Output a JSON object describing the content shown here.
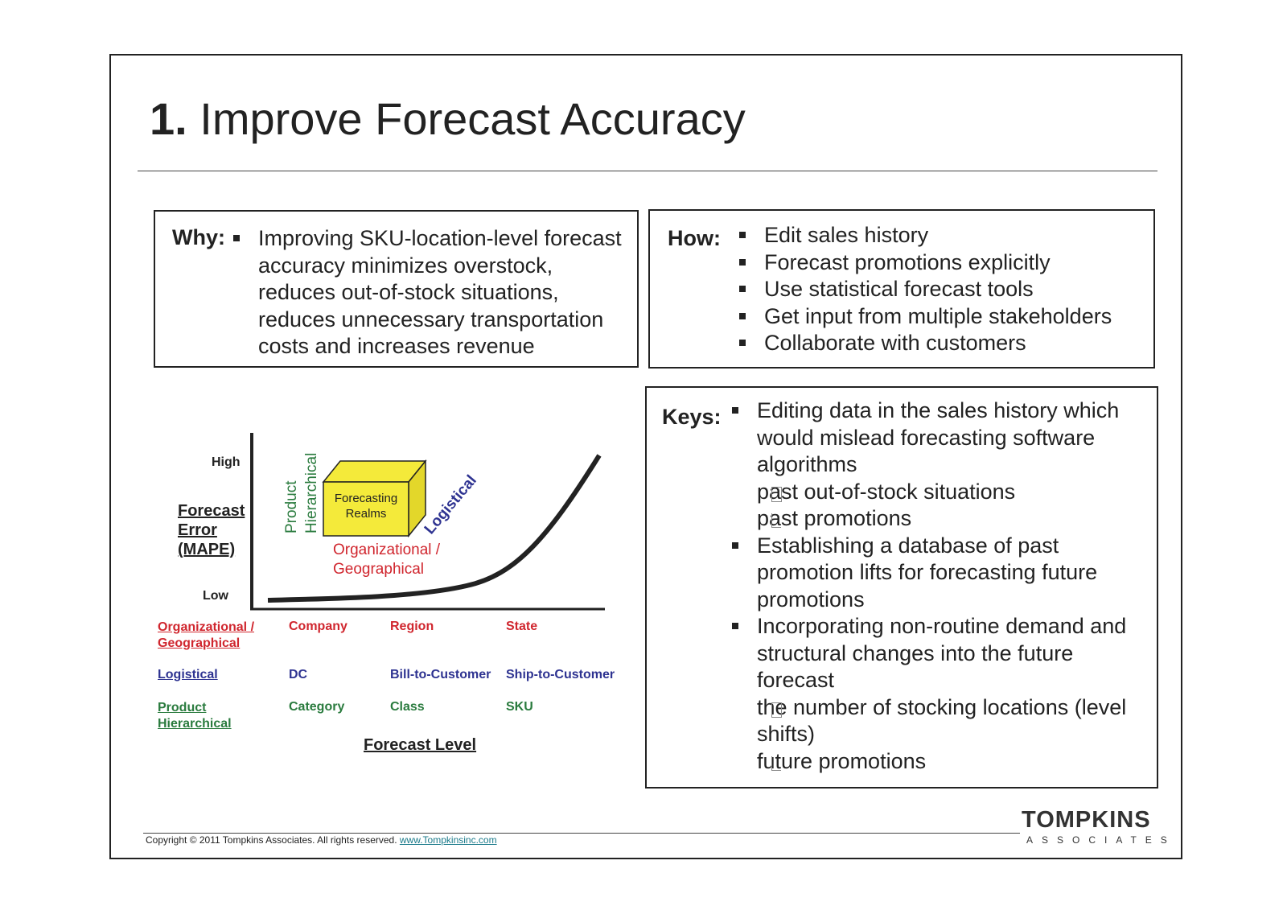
{
  "title": {
    "number": "1.",
    "text": " Improve Forecast Accuracy"
  },
  "why": {
    "label": "Why:",
    "items": [
      "Improving SKU-location-level forecast accuracy minimizes overstock, reduces out-of-stock situations, reduces unnecessary transportation costs and increases revenue"
    ]
  },
  "how": {
    "label": "How:",
    "items": [
      "Edit sales history",
      "Forecast promotions explicitly",
      "Use statistical forecast tools",
      "Get input from multiple stakeholders",
      "Collaborate with customers"
    ]
  },
  "keys": {
    "label": "Keys:",
    "items": [
      {
        "text": "Editing data in the sales history which would mislead forecasting software algorithms",
        "subs": [
          "past out-of-stock situations",
          "past promotions"
        ]
      },
      {
        "text": "Establishing a database of past promotion lifts for forecasting future promotions",
        "subs": []
      },
      {
        "text": "Incorporating non-routine demand and structural changes into the future forecast",
        "subs": [
          "the number of stocking locations (level shifts)",
          "future promotions"
        ]
      }
    ]
  },
  "diagram": {
    "y_high": "High",
    "y_low": "Low",
    "y_label": [
      "Forecast",
      "Error",
      "(MAPE)"
    ],
    "cube_label": [
      "Forecasting",
      "Realms"
    ],
    "axis_product": [
      "Product",
      "Hierarchical"
    ],
    "axis_logistical": "Logistical",
    "axis_org": [
      "Organizational /",
      "Geographical"
    ],
    "colors": {
      "org": "#d0262e",
      "log": "#2e3391",
      "prod": "#2a7b3e",
      "cube": "#f4ea3a"
    },
    "rows": [
      {
        "head": [
          "Organizational /",
          "Geographical"
        ],
        "cells": [
          "Company",
          "Region",
          "State"
        ],
        "color": "org"
      },
      {
        "head": [
          "Logistical"
        ],
        "cells": [
          "DC",
          "Bill-to-Customer",
          "Ship-to-Customer"
        ],
        "color": "log"
      },
      {
        "head": [
          "Product",
          "Hierarchical"
        ],
        "cells": [
          "Category",
          "Class",
          "SKU"
        ],
        "color": "prod"
      }
    ],
    "x_label": "Forecast Level"
  },
  "footer": {
    "copyright": "Copyright © 2011 Tompkins Associates.  All rights reserved. ",
    "url": "www.Tompkinsinc.com",
    "logo_top": "TOMPKINS",
    "logo_bottom": "ASSOCIATES"
  }
}
